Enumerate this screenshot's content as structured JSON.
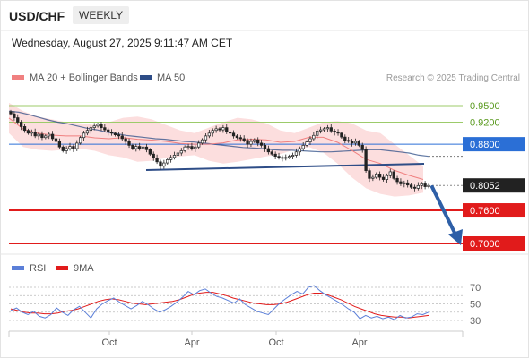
{
  "header": {
    "symbol": "USD/CHF",
    "timeframe": "WEEKLY",
    "datetime": "Wednesday, August 27, 2025 9:11:47 AM CET"
  },
  "legend": {
    "ma20": "MA 20 + Bollinger Bands",
    "ma50": "MA 50",
    "credit": "Research © 2025 Trading Central",
    "rsi": "RSI",
    "rsi_ma": "9MA"
  },
  "colors": {
    "ma20": "#f08080",
    "bollinger_fill": "#fcdede",
    "ma50": "#2e4d87",
    "candle": "#222222",
    "support_line": "#e11b1b",
    "resistance_blue": "#2b6fd6",
    "green_level": "#9ccb6a",
    "current_price_box": "#222222",
    "trendline": "#2e4d87",
    "forecast_arrow": "#2e5fa7",
    "rsi_line": "#5b7fd8",
    "rsi_ma_line": "#e11b1b"
  },
  "chart_data": {
    "type": "candlestick",
    "xlabels": [
      "Oct",
      "Apr",
      "Oct",
      "Apr"
    ],
    "ylim": [
      0.745,
      0.955
    ],
    "levels": [
      {
        "label": "0.9500",
        "value": 0.95,
        "kind": "green"
      },
      {
        "label": "0.9200",
        "value": 0.92,
        "kind": "green"
      },
      {
        "label": "0.8800",
        "value": 0.88,
        "kind": "resistance"
      },
      {
        "label": "0.8052",
        "value": 0.8052,
        "kind": "current"
      },
      {
        "label": "0.7600",
        "value": 0.76,
        "kind": "support"
      },
      {
        "label": "0.7000",
        "value": 0.7,
        "kind": "support"
      }
    ],
    "closes": [
      0.935,
      0.928,
      0.92,
      0.912,
      0.905,
      0.9,
      0.902,
      0.895,
      0.898,
      0.892,
      0.895,
      0.898,
      0.89,
      0.885,
      0.875,
      0.868,
      0.872,
      0.876,
      0.872,
      0.882,
      0.892,
      0.9,
      0.905,
      0.91,
      0.913,
      0.916,
      0.91,
      0.906,
      0.902,
      0.9,
      0.897,
      0.895,
      0.89,
      0.885,
      0.878,
      0.872,
      0.876,
      0.872,
      0.875,
      0.87,
      0.862,
      0.855,
      0.848,
      0.84,
      0.846,
      0.852,
      0.856,
      0.86,
      0.864,
      0.868,
      0.875,
      0.876,
      0.872,
      0.875,
      0.882,
      0.888,
      0.895,
      0.9,
      0.905,
      0.908,
      0.906,
      0.91,
      0.902,
      0.9,
      0.895,
      0.892,
      0.89,
      0.887,
      0.88,
      0.885,
      0.888,
      0.882,
      0.878,
      0.872,
      0.866,
      0.862,
      0.858,
      0.856,
      0.855,
      0.856,
      0.858,
      0.86,
      0.866,
      0.872,
      0.878,
      0.884,
      0.89,
      0.896,
      0.904,
      0.906,
      0.908,
      0.91,
      0.904,
      0.902,
      0.9,
      0.893,
      0.887,
      0.886,
      0.882,
      0.885,
      0.878,
      0.87,
      0.832,
      0.818,
      0.82,
      0.826,
      0.82,
      0.816,
      0.823,
      0.83,
      0.818,
      0.812,
      0.808,
      0.81,
      0.806,
      0.802,
      0.8,
      0.805,
      0.808,
      0.803,
      0.8052
    ],
    "ma50": [
      0.94,
      0.938,
      0.934,
      0.929,
      0.924,
      0.92,
      0.917,
      0.913,
      0.909,
      0.906,
      0.902,
      0.899,
      0.896,
      0.894,
      0.892,
      0.89,
      0.889,
      0.887,
      0.885,
      0.884,
      0.882,
      0.88,
      0.878,
      0.876,
      0.874,
      0.873,
      0.872,
      0.87,
      0.869,
      0.869,
      0.868,
      0.867,
      0.866,
      0.866,
      0.867,
      0.868,
      0.869,
      0.87,
      0.87,
      0.868,
      0.866,
      0.864,
      0.86,
      0.858
    ],
    "bb_upper": [
      0.955,
      0.94,
      0.93,
      0.925,
      0.92,
      0.918,
      0.915,
      0.92,
      0.928,
      0.93,
      0.925,
      0.915,
      0.905,
      0.9,
      0.91,
      0.92,
      0.928,
      0.925,
      0.918,
      0.905,
      0.9,
      0.91,
      0.92,
      0.922,
      0.918,
      0.905,
      0.9,
      0.88,
      0.86,
      0.84
    ],
    "bb_lower": [
      0.9,
      0.875,
      0.87,
      0.868,
      0.87,
      0.872,
      0.868,
      0.86,
      0.856,
      0.848,
      0.85,
      0.855,
      0.858,
      0.86,
      0.85,
      0.845,
      0.848,
      0.853,
      0.858,
      0.862,
      0.87,
      0.875,
      0.865,
      0.845,
      0.82,
      0.8,
      0.79,
      0.785,
      0.787,
      0.792
    ],
    "rsi": {
      "ylabels": [
        "70",
        "50",
        "30"
      ],
      "ylim": [
        25,
        80
      ],
      "rsi_values": [
        42,
        45,
        40,
        37,
        41,
        35,
        33,
        37,
        45,
        40,
        36,
        43,
        47,
        40,
        33,
        44,
        50,
        54,
        57,
        52,
        48,
        44,
        48,
        53,
        49,
        44,
        40,
        43,
        47,
        52,
        58,
        65,
        61,
        66,
        68,
        63,
        59,
        57,
        54,
        51,
        56,
        49,
        45,
        41,
        39,
        37,
        44,
        51,
        56,
        61,
        65,
        62,
        70,
        72,
        66,
        61,
        57,
        53,
        49,
        44,
        40,
        32,
        36,
        33,
        35,
        32,
        34,
        31,
        36,
        33,
        34,
        38,
        37,
        40
      ],
      "ma_values": [
        44,
        42,
        40,
        39,
        39,
        38,
        38,
        39,
        41,
        42,
        44,
        47,
        50,
        53,
        55,
        56,
        55,
        53,
        51,
        50,
        49,
        50,
        51,
        52,
        53,
        55,
        58,
        61,
        63,
        64,
        64,
        62,
        60,
        57,
        55,
        53,
        51,
        50,
        49,
        49,
        50,
        52,
        55,
        58,
        61,
        63,
        63,
        61,
        58,
        55,
        51,
        47,
        44,
        41,
        38,
        36,
        35,
        34,
        34,
        33,
        34,
        35,
        36
      ]
    }
  }
}
